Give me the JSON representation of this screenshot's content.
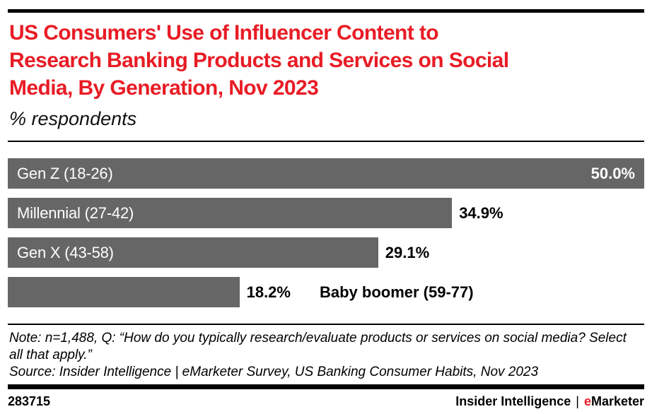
{
  "header": {
    "title_lines": [
      "US Consumers' Use of Influencer Content to",
      "Research Banking Products and Services on Social",
      "Media, By Generation, Nov 2023"
    ],
    "subtitle": "% respondents"
  },
  "chart_data": {
    "type": "bar",
    "orientation": "horizontal",
    "title": "US Consumers' Use of Influencer Content to Research Banking Products and Services on Social Media, By Generation, Nov 2023",
    "subtitle": "% respondents",
    "categories": [
      "Gen Z (18-26)",
      "Millennial (27-42)",
      "Gen X (43-58)",
      "Baby boomer (59-77)"
    ],
    "values": [
      50.0,
      34.9,
      29.1,
      18.2
    ],
    "xlim": [
      0,
      50
    ],
    "unit": "% respondents",
    "grid": false,
    "legend": false,
    "bar_color": "#666666",
    "bars": [
      {
        "label": "Gen Z (18-26)",
        "value_label": "50.0%",
        "label_position": "inside",
        "value_position": "inside"
      },
      {
        "label": "Millennial (27-42)",
        "value_label": "34.9%",
        "label_position": "inside",
        "value_position": "outside"
      },
      {
        "label": "Gen X (43-58)",
        "value_label": "29.1%",
        "label_position": "inside",
        "value_position": "outside"
      },
      {
        "label": "Baby boomer (59-77)",
        "value_label": "18.2%",
        "label_position": "outside",
        "value_position": "outside"
      }
    ]
  },
  "footnotes": {
    "note": "Note: n=1,488, Q: “How do you typically research/evaluate products or services on social media? Select all that apply.”",
    "source": "Source: Insider Intelligence | eMarketer Survey, US Banking Consumer Habits, Nov 2023"
  },
  "footer": {
    "chart_id": "283715",
    "brand_left": "Insider Intelligence",
    "brand_divider": "|",
    "brand_e": "e",
    "brand_rest": "Marketer"
  },
  "colors": {
    "accent_red": "#e81c25",
    "bar_gray": "#666666",
    "text_black": "#000000",
    "bar_label_white": "#ffffff"
  }
}
